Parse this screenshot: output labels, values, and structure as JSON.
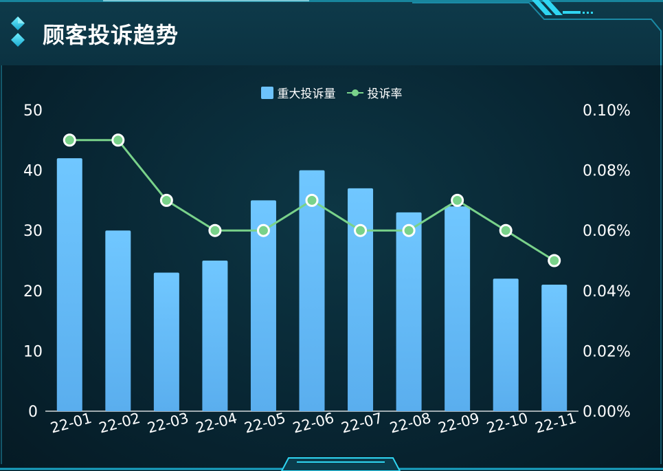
{
  "title": "顾客投诉趋势",
  "colors": {
    "bar_top": "#70c7ff",
    "bar_bottom": "#5aaeee",
    "line": "#79d28a",
    "accent": "#2fd6f2"
  },
  "chart_data": {
    "type": "bar",
    "categories": [
      "22-01",
      "22-02",
      "22-03",
      "22-04",
      "22-05",
      "22-06",
      "22-07",
      "22-08",
      "22-09",
      "22-10",
      "22-11"
    ],
    "series": [
      {
        "name": "重大投诉量",
        "type": "bar",
        "axis": "left",
        "values": [
          42,
          30,
          23,
          25,
          35,
          40,
          37,
          33,
          34,
          22,
          21
        ]
      },
      {
        "name": "投诉率",
        "type": "line",
        "axis": "right",
        "values": [
          0.09,
          0.09,
          0.07,
          0.06,
          0.06,
          0.07,
          0.06,
          0.06,
          0.07,
          0.06,
          0.05
        ]
      }
    ],
    "y_left": {
      "ylim": [
        0,
        50
      ],
      "ticks": [
        "0",
        "10",
        "20",
        "30",
        "40",
        "50"
      ]
    },
    "y_right": {
      "ylim": [
        0,
        0.1
      ],
      "ticks": [
        "0.00%",
        "0.02%",
        "0.04%",
        "0.06%",
        "0.08%",
        "0.10%"
      ]
    },
    "legend": "top-center",
    "grid": false
  }
}
